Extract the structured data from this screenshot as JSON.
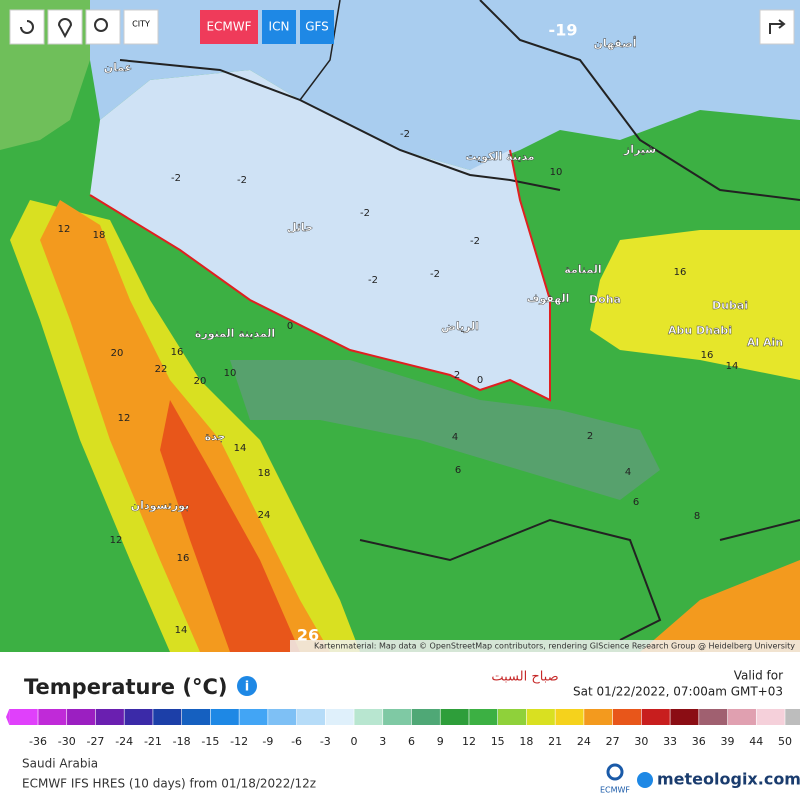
{
  "toolbar": {
    "city": "CITY",
    "models": [
      "ECMWF",
      "ICN",
      "GFS"
    ]
  },
  "map": {
    "labels": [
      "عمان",
      "مدينة الكويت",
      "حائل",
      "الرياض",
      "المدينة المنورة",
      "جدة",
      "المنامة",
      "الهفوف",
      "Doha",
      "Dubai",
      "Abu Dhabi",
      "Al Ain",
      "بورتسودان",
      "شيراز",
      "أصفهان"
    ],
    "contours": [
      -2,
      -2,
      -2,
      -2,
      -2,
      -2,
      -2,
      0,
      2,
      0,
      2,
      4,
      4,
      6,
      6,
      8,
      10,
      12,
      18,
      16,
      20,
      22,
      20,
      12,
      14,
      18,
      24,
      16,
      12,
      14,
      10,
      16,
      16,
      14,
      -19,
      26
    ],
    "attribution": "Kartenmaterial: Map data © OpenStreetMap contributors, rendering GIScience Research Group @ Heidelberg University"
  },
  "legend": {
    "title": "Temperature (°C)",
    "day": "صباح السبت",
    "valid_label": "Valid for",
    "valid_time": "Sat 01/22/2022, 07:00am GMT+03",
    "ticks": [
      -36,
      -30,
      -27,
      -24,
      -21,
      -18,
      -15,
      -12,
      -9,
      -6,
      -3,
      0,
      3,
      6,
      9,
      12,
      15,
      18,
      21,
      24,
      27,
      30,
      33,
      36,
      39,
      44,
      50
    ]
  },
  "footer": {
    "region": "Saudi Arabia",
    "model_run": "ECMWF IFS HRES (10 days) from 01/18/2022/12z",
    "ecmwf_logo": "ECMWF",
    "brand": "meteologix.com"
  }
}
